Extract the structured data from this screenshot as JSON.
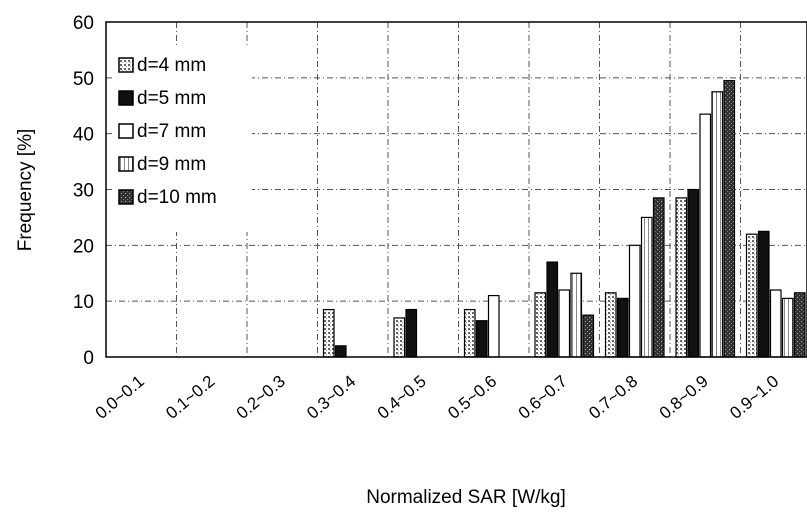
{
  "chart_data": {
    "type": "bar",
    "xlabel": "Normalized SAR [W/kg]",
    "ylabel": "Frequency [%]",
    "ylim": [
      0,
      60
    ],
    "yticks": [
      "0",
      "10",
      "20",
      "30",
      "40",
      "50",
      "60"
    ],
    "grid": true,
    "legend_position": "top-left",
    "categories": [
      "0.0~0.1",
      "0.1~0.2",
      "0.2~0.3",
      "0.3~0.4",
      "0.4~0.5",
      "0.5~0.6",
      "0.6~0.7",
      "0.7~0.8",
      "0.8~0.9",
      "0.9~1.0"
    ],
    "series": [
      {
        "name": "d=4 mm",
        "style": "speckled",
        "values": [
          0,
          0,
          0,
          8.5,
          7,
          8.5,
          11.5,
          11.5,
          28.5,
          22
        ]
      },
      {
        "name": "d=5 mm",
        "style": "solid",
        "values": [
          0,
          0,
          0,
          2,
          8.5,
          6.5,
          17,
          10.5,
          30,
          22.5
        ]
      },
      {
        "name": "d=7 mm",
        "style": "hollow",
        "values": [
          0,
          0,
          0,
          0,
          0,
          11,
          12,
          20,
          43.5,
          12
        ]
      },
      {
        "name": "d=9 mm",
        "style": "hatched",
        "values": [
          0,
          0,
          0,
          0,
          0,
          0,
          15,
          25,
          47.5,
          10.5
        ]
      },
      {
        "name": "d=10 mm",
        "style": "dark-speckled",
        "values": [
          0,
          0,
          0,
          0,
          0,
          0,
          7.5,
          28.5,
          49.5,
          11.5
        ]
      }
    ]
  }
}
